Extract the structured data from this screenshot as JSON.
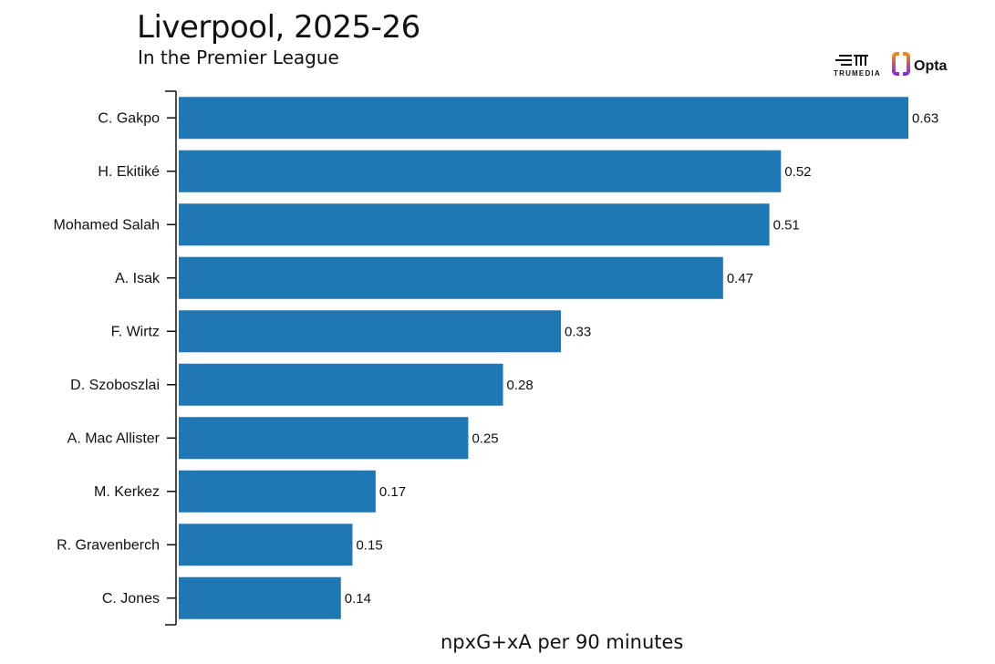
{
  "header": {
    "title": "Liverpool, 2025-26",
    "subtitle": "In the Premier League"
  },
  "logos": {
    "trumedia": "TRUMEDIA",
    "opta": "Opta"
  },
  "chart_data": {
    "type": "bar",
    "orientation": "horizontal",
    "title": "Liverpool, 2025-26",
    "subtitle": "In the Premier League",
    "xlabel": "npxG+xA per 90 minutes",
    "ylabel": "",
    "categories": [
      "C. Gakpo",
      "H. Ekitiké",
      "Mohamed Salah",
      "A. Isak",
      "F. Wirtz",
      "D. Szoboszlai",
      "A. Mac Allister",
      "M. Kerkez",
      "R. Gravenberch",
      "C. Jones"
    ],
    "values": [
      0.63,
      0.52,
      0.51,
      0.47,
      0.33,
      0.28,
      0.25,
      0.17,
      0.15,
      0.14
    ],
    "data_labels": [
      "0.63",
      "0.52",
      "0.51",
      "0.47",
      "0.33",
      "0.28",
      "0.25",
      "0.17",
      "0.15",
      "0.14"
    ],
    "xlim": [
      0,
      0.63
    ],
    "grid": false,
    "bar_color": "#1f77b4"
  }
}
